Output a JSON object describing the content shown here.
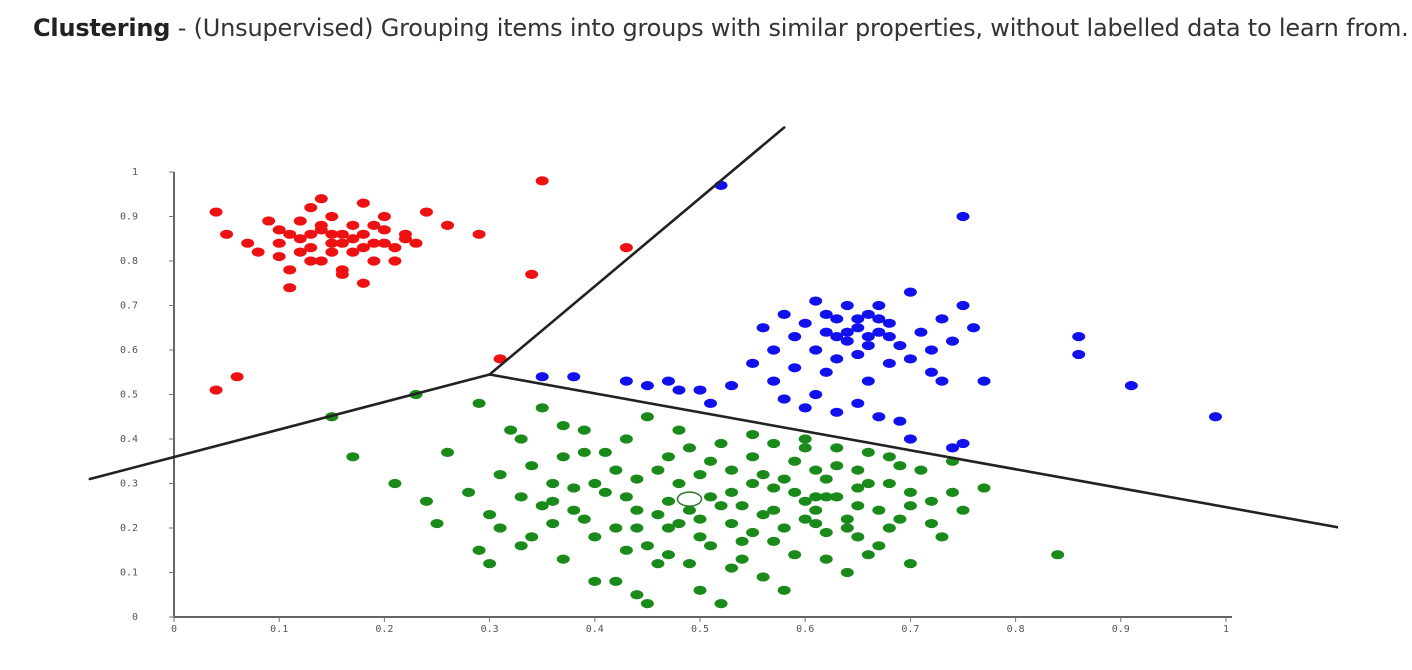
{
  "caption": {
    "term": "Clustering",
    "separator": " - ",
    "description": "(Unsupervised) Grouping items into groups with similar properties, without labelled data to learn from."
  },
  "chart_data": {
    "type": "scatter",
    "title": "",
    "xlabel": "",
    "ylabel": "",
    "xlim": [
      0,
      1
    ],
    "ylim": [
      0,
      1
    ],
    "grid": false,
    "x_ticks": [
      "0",
      "0.1",
      "0.2",
      "0.3",
      "0.4",
      "0.5",
      "0.6",
      "0.7",
      "0.8",
      "0.9",
      "1"
    ],
    "y_ticks": [
      "0",
      "0.1",
      "0.2",
      "0.3",
      "0.4",
      "0.5",
      "0.6",
      "0.7",
      "0.8",
      "0.9",
      "1"
    ],
    "boundary_lines": [
      {
        "from": [
          -0.08,
          0.31
        ],
        "to": [
          0.3,
          0.545
        ]
      },
      {
        "from": [
          0.3,
          0.545
        ],
        "to": [
          0.58,
          1.1
        ]
      },
      {
        "from": [
          0.3,
          0.545
        ],
        "to": [
          1.11,
          0.2
        ]
      }
    ],
    "centroid": [
      0.49,
      0.265
    ],
    "series": [
      {
        "color": "#ee1111",
        "points": [
          [
            0.04,
            0.91
          ],
          [
            0.05,
            0.86
          ],
          [
            0.07,
            0.84
          ],
          [
            0.08,
            0.82
          ],
          [
            0.09,
            0.89
          ],
          [
            0.1,
            0.87
          ],
          [
            0.1,
            0.81
          ],
          [
            0.11,
            0.78
          ],
          [
            0.12,
            0.85
          ],
          [
            0.12,
            0.89
          ],
          [
            0.13,
            0.83
          ],
          [
            0.13,
            0.92
          ],
          [
            0.14,
            0.87
          ],
          [
            0.14,
            0.8
          ],
          [
            0.15,
            0.86
          ],
          [
            0.15,
            0.9
          ],
          [
            0.16,
            0.84
          ],
          [
            0.16,
            0.78
          ],
          [
            0.17,
            0.88
          ],
          [
            0.17,
            0.82
          ],
          [
            0.18,
            0.86
          ],
          [
            0.18,
            0.93
          ],
          [
            0.19,
            0.84
          ],
          [
            0.19,
            0.8
          ],
          [
            0.2,
            0.87
          ],
          [
            0.2,
            0.9
          ],
          [
            0.21,
            0.83
          ],
          [
            0.21,
            0.8
          ],
          [
            0.22,
            0.86
          ],
          [
            0.23,
            0.84
          ],
          [
            0.11,
            0.86
          ],
          [
            0.13,
            0.86
          ],
          [
            0.15,
            0.84
          ],
          [
            0.16,
            0.86
          ],
          [
            0.17,
            0.85
          ],
          [
            0.18,
            0.83
          ],
          [
            0.14,
            0.88
          ],
          [
            0.19,
            0.88
          ],
          [
            0.12,
            0.82
          ],
          [
            0.2,
            0.84
          ],
          [
            0.14,
            0.94
          ],
          [
            0.11,
            0.74
          ],
          [
            0.16,
            0.77
          ],
          [
            0.18,
            0.75
          ],
          [
            0.24,
            0.91
          ],
          [
            0.26,
            0.88
          ],
          [
            0.29,
            0.86
          ],
          [
            0.35,
            0.98
          ],
          [
            0.34,
            0.77
          ],
          [
            0.43,
            0.83
          ],
          [
            0.31,
            0.58
          ],
          [
            0.06,
            0.54
          ],
          [
            0.04,
            0.51
          ],
          [
            0.22,
            0.85
          ],
          [
            0.15,
            0.82
          ],
          [
            0.1,
            0.84
          ],
          [
            0.13,
            0.8
          ]
        ]
      },
      {
        "color": "#1111ee",
        "points": [
          [
            0.52,
            0.97
          ],
          [
            0.75,
            0.9
          ],
          [
            0.35,
            0.54
          ],
          [
            0.38,
            0.54
          ],
          [
            0.43,
            0.53
          ],
          [
            0.45,
            0.52
          ],
          [
            0.47,
            0.53
          ],
          [
            0.48,
            0.51
          ],
          [
            0.5,
            0.51
          ],
          [
            0.51,
            0.48
          ],
          [
            0.53,
            0.52
          ],
          [
            0.55,
            0.57
          ],
          [
            0.57,
            0.53
          ],
          [
            0.58,
            0.49
          ],
          [
            0.6,
            0.47
          ],
          [
            0.61,
            0.5
          ],
          [
            0.63,
            0.46
          ],
          [
            0.65,
            0.48
          ],
          [
            0.67,
            0.45
          ],
          [
            0.69,
            0.44
          ],
          [
            0.7,
            0.4
          ],
          [
            0.74,
            0.38
          ],
          [
            0.75,
            0.39
          ],
          [
            0.73,
            0.53
          ],
          [
            0.77,
            0.53
          ],
          [
            0.56,
            0.65
          ],
          [
            0.57,
            0.6
          ],
          [
            0.58,
            0.68
          ],
          [
            0.59,
            0.63
          ],
          [
            0.6,
            0.66
          ],
          [
            0.61,
            0.6
          ],
          [
            0.61,
            0.71
          ],
          [
            0.62,
            0.64
          ],
          [
            0.63,
            0.67
          ],
          [
            0.63,
            0.58
          ],
          [
            0.64,
            0.7
          ],
          [
            0.64,
            0.62
          ],
          [
            0.65,
            0.65
          ],
          [
            0.65,
            0.59
          ],
          [
            0.66,
            0.68
          ],
          [
            0.66,
            0.61
          ],
          [
            0.67,
            0.64
          ],
          [
            0.67,
            0.7
          ],
          [
            0.68,
            0.57
          ],
          [
            0.68,
            0.66
          ],
          [
            0.69,
            0.61
          ],
          [
            0.7,
            0.73
          ],
          [
            0.71,
            0.64
          ],
          [
            0.72,
            0.6
          ],
          [
            0.73,
            0.67
          ],
          [
            0.74,
            0.62
          ],
          [
            0.75,
            0.7
          ],
          [
            0.76,
            0.65
          ],
          [
            0.62,
            0.55
          ],
          [
            0.66,
            0.53
          ],
          [
            0.7,
            0.58
          ],
          [
            0.72,
            0.55
          ],
          [
            0.59,
            0.56
          ],
          [
            0.86,
            0.63
          ],
          [
            0.86,
            0.59
          ],
          [
            0.91,
            0.52
          ],
          [
            0.99,
            0.45
          ],
          [
            0.64,
            0.64
          ],
          [
            0.66,
            0.63
          ],
          [
            0.68,
            0.63
          ],
          [
            0.63,
            0.63
          ],
          [
            0.65,
            0.67
          ],
          [
            0.67,
            0.67
          ],
          [
            0.62,
            0.68
          ]
        ]
      },
      {
        "color": "#1a8a1a",
        "points": [
          [
            0.15,
            0.45
          ],
          [
            0.17,
            0.36
          ],
          [
            0.21,
            0.3
          ],
          [
            0.23,
            0.5
          ],
          [
            0.24,
            0.26
          ],
          [
            0.25,
            0.21
          ],
          [
            0.26,
            0.37
          ],
          [
            0.28,
            0.28
          ],
          [
            0.29,
            0.15
          ],
          [
            0.3,
            0.23
          ],
          [
            0.31,
            0.32
          ],
          [
            0.32,
            0.42
          ],
          [
            0.33,
            0.27
          ],
          [
            0.34,
            0.18
          ],
          [
            0.35,
            0.47
          ],
          [
            0.36,
            0.3
          ],
          [
            0.37,
            0.13
          ],
          [
            0.38,
            0.24
          ],
          [
            0.39,
            0.37
          ],
          [
            0.4,
            0.08
          ],
          [
            0.41,
            0.28
          ],
          [
            0.42,
            0.2
          ],
          [
            0.43,
            0.4
          ],
          [
            0.44,
            0.05
          ],
          [
            0.45,
            0.16
          ],
          [
            0.46,
            0.33
          ],
          [
            0.47,
            0.26
          ],
          [
            0.48,
            0.42
          ],
          [
            0.49,
            0.12
          ],
          [
            0.5,
            0.22
          ],
          [
            0.51,
            0.35
          ],
          [
            0.52,
            0.03
          ],
          [
            0.53,
            0.28
          ],
          [
            0.54,
            0.17
          ],
          [
            0.55,
            0.41
          ],
          [
            0.56,
            0.09
          ],
          [
            0.57,
            0.24
          ],
          [
            0.58,
            0.31
          ],
          [
            0.59,
            0.14
          ],
          [
            0.6,
            0.38
          ],
          [
            0.61,
            0.27
          ],
          [
            0.62,
            0.19
          ],
          [
            0.63,
            0.34
          ],
          [
            0.64,
            0.1
          ],
          [
            0.65,
            0.25
          ],
          [
            0.66,
            0.37
          ],
          [
            0.67,
            0.16
          ],
          [
            0.68,
            0.3
          ],
          [
            0.69,
            0.22
          ],
          [
            0.7,
            0.12
          ],
          [
            0.71,
            0.33
          ],
          [
            0.72,
            0.26
          ],
          [
            0.73,
            0.18
          ],
          [
            0.74,
            0.28
          ],
          [
            0.75,
            0.24
          ],
          [
            0.77,
            0.29
          ],
          [
            0.84,
            0.14
          ],
          [
            0.29,
            0.48
          ],
          [
            0.33,
            0.4
          ],
          [
            0.36,
            0.21
          ],
          [
            0.39,
            0.42
          ],
          [
            0.42,
            0.33
          ],
          [
            0.44,
            0.24
          ],
          [
            0.46,
            0.12
          ],
          [
            0.48,
            0.3
          ],
          [
            0.5,
            0.18
          ],
          [
            0.52,
            0.39
          ],
          [
            0.54,
            0.25
          ],
          [
            0.56,
            0.32
          ],
          [
            0.58,
            0.2
          ],
          [
            0.6,
            0.26
          ],
          [
            0.62,
            0.31
          ],
          [
            0.64,
            0.22
          ],
          [
            0.66,
            0.3
          ],
          [
            0.68,
            0.2
          ],
          [
            0.7,
            0.28
          ],
          [
            0.31,
            0.2
          ],
          [
            0.34,
            0.34
          ],
          [
            0.37,
            0.43
          ],
          [
            0.4,
            0.3
          ],
          [
            0.43,
            0.15
          ],
          [
            0.45,
            0.45
          ],
          [
            0.47,
            0.2
          ],
          [
            0.49,
            0.38
          ],
          [
            0.51,
            0.27
          ],
          [
            0.53,
            0.11
          ],
          [
            0.55,
            0.3
          ],
          [
            0.57,
            0.17
          ],
          [
            0.59,
            0.28
          ],
          [
            0.61,
            0.21
          ],
          [
            0.63,
            0.27
          ],
          [
            0.65,
            0.18
          ],
          [
            0.67,
            0.24
          ],
          [
            0.69,
            0.34
          ],
          [
            0.38,
            0.29
          ],
          [
            0.41,
            0.37
          ],
          [
            0.44,
            0.31
          ],
          [
            0.47,
            0.14
          ],
          [
            0.5,
            0.32
          ],
          [
            0.53,
            0.21
          ],
          [
            0.56,
            0.23
          ],
          [
            0.59,
            0.35
          ],
          [
            0.62,
            0.13
          ],
          [
            0.65,
            0.29
          ],
          [
            0.3,
            0.12
          ],
          [
            0.35,
            0.25
          ],
          [
            0.42,
            0.08
          ],
          [
            0.46,
            0.23
          ],
          [
            0.48,
            0.21
          ],
          [
            0.52,
            0.25
          ],
          [
            0.55,
            0.36
          ],
          [
            0.58,
            0.06
          ],
          [
            0.6,
            0.4
          ],
          [
            0.63,
            0.38
          ],
          [
            0.66,
            0.14
          ],
          [
            0.4,
            0.18
          ],
          [
            0.33,
            0.16
          ],
          [
            0.45,
            0.03
          ],
          [
            0.5,
            0.06
          ],
          [
            0.54,
            0.13
          ],
          [
            0.57,
            0.39
          ],
          [
            0.61,
            0.33
          ],
          [
            0.64,
            0.2
          ],
          [
            0.68,
            0.36
          ],
          [
            0.72,
            0.21
          ],
          [
            0.74,
            0.35
          ],
          [
            0.37,
            0.36
          ],
          [
            0.43,
            0.27
          ],
          [
            0.47,
            0.36
          ],
          [
            0.51,
            0.16
          ],
          [
            0.55,
            0.19
          ],
          [
            0.6,
            0.22
          ],
          [
            0.62,
            0.27
          ],
          [
            0.36,
            0.26
          ],
          [
            0.39,
            0.22
          ],
          [
            0.44,
            0.2
          ],
          [
            0.49,
            0.24
          ],
          [
            0.53,
            0.33
          ],
          [
            0.57,
            0.29
          ],
          [
            0.61,
            0.24
          ],
          [
            0.65,
            0.33
          ],
          [
            0.7,
            0.25
          ]
        ]
      }
    ]
  }
}
